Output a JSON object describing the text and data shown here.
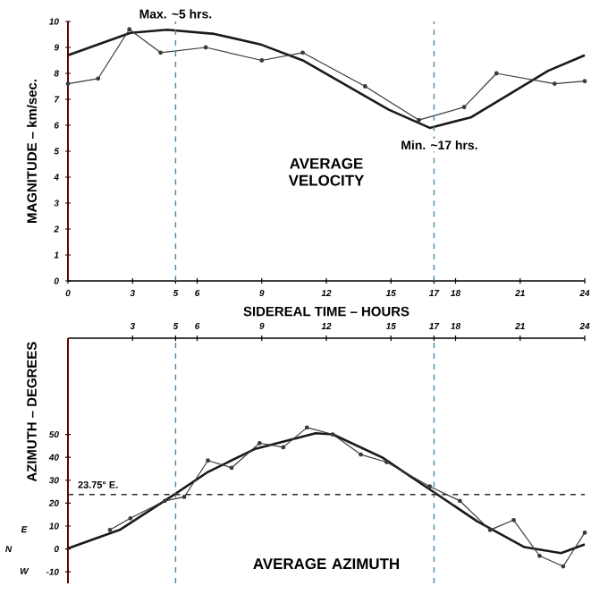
{
  "chart_data": [
    {
      "type": "line",
      "xlabel": "SIDEREAL TIME – HOURS",
      "ylabel": "MAGNITUDE – km/sec.",
      "xlim": [
        0,
        24
      ],
      "xticks": [
        0,
        3,
        5,
        6,
        9,
        12,
        15,
        17,
        18,
        21,
        24
      ],
      "ylim": [
        0,
        10
      ],
      "yticks": [
        0,
        1,
        2,
        3,
        4,
        5,
        6,
        7,
        8,
        9,
        10
      ],
      "series": [
        {
          "color": "#1a1a1a",
          "marker": "none",
          "x": [
            0,
            2.9,
            4.6,
            6.8,
            9.0,
            10.9,
            12.8,
            14.9,
            16.8,
            18.7,
            20.7,
            22.3,
            24
          ],
          "values": [
            8.7,
            9.56,
            9.68,
            9.52,
            9.1,
            8.5,
            7.6,
            6.6,
            5.9,
            6.3,
            7.3,
            8.1,
            8.7
          ]
        },
        {
          "color": "#3a3a3a",
          "marker": "circle",
          "x": [
            0,
            1.4,
            2.85,
            4.3,
            6.4,
            9.0,
            10.9,
            13.8,
            16.3,
            18.4,
            19.9,
            22.6,
            24
          ],
          "values": [
            7.6,
            7.8,
            9.7,
            8.8,
            9.0,
            8.5,
            8.8,
            7.5,
            6.2,
            6.7,
            8.0,
            7.6,
            7.7
          ]
        }
      ],
      "ref_lines": [
        {
          "axis": "x",
          "value": 5,
          "label": "Max. ~5 hrs.",
          "color": "#4a8aa8",
          "line_style": "dashed"
        },
        {
          "axis": "x",
          "value": 17,
          "label": "Min. ~17 hrs.",
          "color": "#4a8aa8",
          "line_style": "dashed"
        }
      ],
      "annotations": [
        "AVERAGE VELOCITY"
      ]
    },
    {
      "type": "line",
      "ylabel": "AZIMUTH – DEGREES",
      "xlim": [
        0,
        24
      ],
      "xticks": [
        3,
        5,
        6,
        9,
        12,
        15,
        17,
        18,
        21,
        24
      ],
      "ylim": [
        -15,
        92
      ],
      "yticks": [
        -10,
        0,
        10,
        20,
        30,
        40,
        50
      ],
      "series": [
        {
          "color": "#1a1a1a",
          "marker": "none",
          "x": [
            0,
            2.4,
            4.9,
            6.5,
            8.7,
            11.5,
            12.3,
            14.6,
            16.8,
            19.0,
            21.2,
            22.9,
            24
          ],
          "values": [
            0.2,
            8.3,
            23.5,
            33.6,
            43.7,
            50.5,
            50,
            39.9,
            26,
            12.1,
            0.8,
            -1.8,
            2.0
          ]
        },
        {
          "color": "#3a3a3a",
          "marker": "circle",
          "x": [
            1.95,
            2.9,
            4.5,
            5.4,
            6.5,
            7.6,
            8.9,
            10.0,
            11.1,
            12.3,
            13.6,
            14.8,
            16.8,
            18.2,
            19.6,
            20.7,
            21.9,
            23.0,
            24
          ],
          "values": [
            8.3,
            13.4,
            21.0,
            22.7,
            38.6,
            35.4,
            46.2,
            44.4,
            53,
            50,
            41.2,
            37.9,
            27.3,
            21.0,
            8.3,
            12.6,
            -3.0,
            -7.6,
            7.1
          ]
        }
      ],
      "ref_lines": [
        {
          "axis": "x",
          "value": 5,
          "color": "#4a8aa8",
          "line_style": "dashed"
        },
        {
          "axis": "x",
          "value": 17,
          "color": "#4a8aa8",
          "line_style": "dashed"
        },
        {
          "axis": "y",
          "value": 23.75,
          "label": "23.75° E.",
          "color": "#2a2a2a",
          "line_style": "dashed"
        }
      ],
      "annotations": [
        "AVERAGE AZIMUTH",
        "N",
        "E",
        "W"
      ]
    }
  ]
}
